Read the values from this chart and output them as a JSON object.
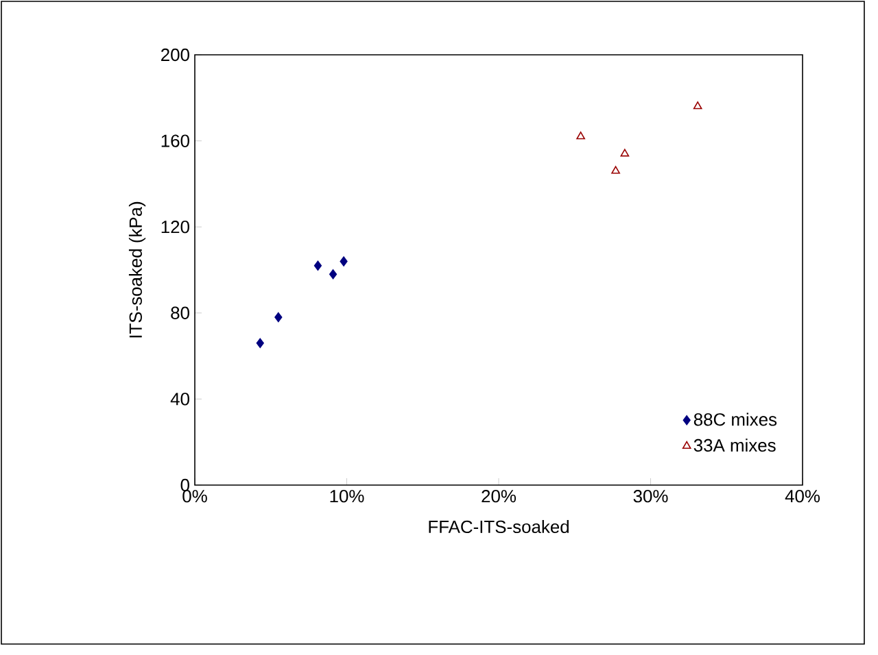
{
  "chart_data": {
    "type": "scatter",
    "xlabel": "FFAC-ITS-soaked",
    "ylabel": "ITS-soaked (kPa)",
    "xlim": [
      0,
      0.4
    ],
    "ylim": [
      0,
      200
    ],
    "xticks": [
      {
        "value": 0,
        "label": "0%"
      },
      {
        "value": 0.1,
        "label": "10%"
      },
      {
        "value": 0.2,
        "label": "20%"
      },
      {
        "value": 0.3,
        "label": "30%"
      },
      {
        "value": 0.4,
        "label": "40%"
      }
    ],
    "yticks": [
      0,
      40,
      80,
      120,
      160,
      200
    ],
    "grid": false,
    "legend": "bottom right",
    "series": [
      {
        "name": "88C mixes",
        "color": "#000080",
        "marker": "diamond",
        "x": [
          0.043,
          0.055,
          0.081,
          0.091,
          0.098
        ],
        "values": [
          66,
          78,
          102,
          98,
          104
        ]
      },
      {
        "name": "33A mixes",
        "color": "#990000",
        "marker": "triangle",
        "x": [
          0.254,
          0.277,
          0.283,
          0.331
        ],
        "values": [
          162,
          146,
          154,
          176
        ]
      }
    ]
  }
}
